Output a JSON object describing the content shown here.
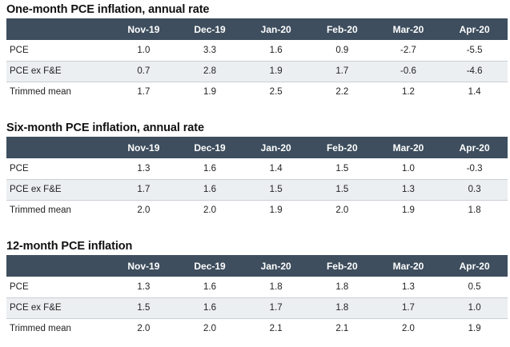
{
  "columns": [
    "Nov-19",
    "Dec-19",
    "Jan-20",
    "Feb-20",
    "Mar-20",
    "Apr-20"
  ],
  "sections": [
    {
      "title": "One-month PCE inflation, annual rate",
      "rows": [
        {
          "label": "PCE",
          "values": [
            "1.0",
            "3.3",
            "1.6",
            "0.9",
            "-2.7",
            "-5.5"
          ]
        },
        {
          "label": "PCE ex F&E",
          "values": [
            "0.7",
            "2.8",
            "1.9",
            "1.7",
            "-0.6",
            "-4.6"
          ]
        },
        {
          "label": "Trimmed mean",
          "values": [
            "1.7",
            "1.9",
            "2.5",
            "2.2",
            "1.2",
            "1.4"
          ]
        }
      ]
    },
    {
      "title": "Six-month PCE inflation, annual rate",
      "rows": [
        {
          "label": "PCE",
          "values": [
            "1.3",
            "1.6",
            "1.4",
            "1.5",
            "1.0",
            "-0.3"
          ]
        },
        {
          "label": "PCE ex F&E",
          "values": [
            "1.7",
            "1.6",
            "1.5",
            "1.5",
            "1.3",
            "0.3"
          ]
        },
        {
          "label": "Trimmed mean",
          "values": [
            "2.0",
            "2.0",
            "1.9",
            "2.0",
            "1.9",
            "1.8"
          ]
        }
      ]
    },
    {
      "title": "12-month PCE inflation",
      "rows": [
        {
          "label": "PCE",
          "values": [
            "1.3",
            "1.6",
            "1.8",
            "1.8",
            "1.3",
            "0.5"
          ]
        },
        {
          "label": "PCE ex F&E",
          "values": [
            "1.5",
            "1.6",
            "1.7",
            "1.8",
            "1.7",
            "1.0"
          ]
        },
        {
          "label": "Trimmed mean",
          "values": [
            "2.0",
            "2.0",
            "2.1",
            "2.1",
            "2.0",
            "1.9"
          ]
        }
      ]
    }
  ],
  "colors": {
    "header_bg": "#3e4e5e",
    "stripe_bg": "#eceff2"
  }
}
